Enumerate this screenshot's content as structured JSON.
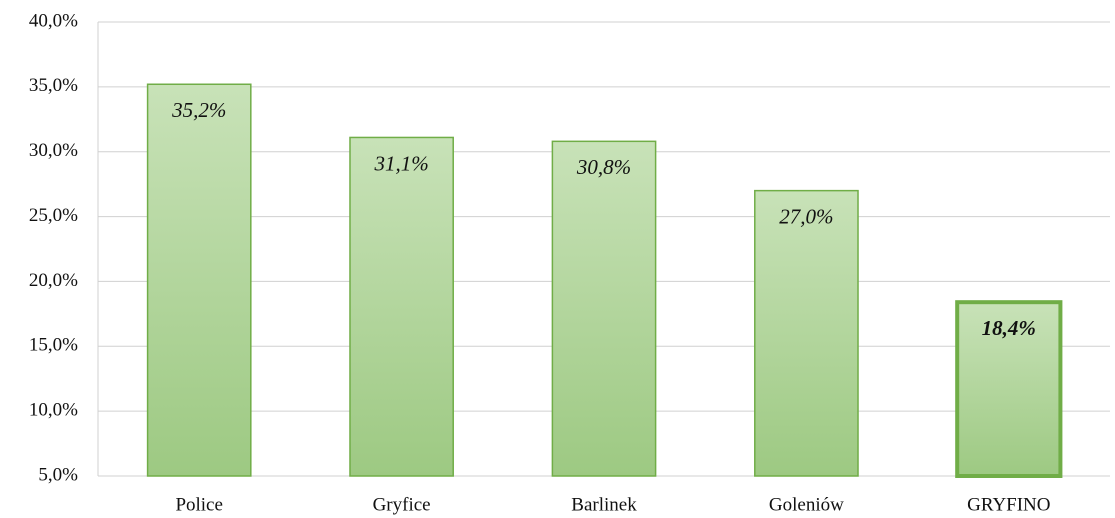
{
  "chart_data": {
    "type": "bar",
    "categories": [
      "Police",
      "Gryfice",
      "Barlinek",
      "Goleniów",
      "GRYFINO"
    ],
    "values": [
      35.2,
      31.1,
      30.8,
      27.0,
      18.4
    ],
    "value_labels": [
      "35,2%",
      "31,1%",
      "30,8%",
      "27,0%",
      "18,4%"
    ],
    "color": "#a9d18e",
    "highlight": "GRYFINO",
    "ylim": [
      5,
      40
    ],
    "yticks": [
      {
        "value": 5,
        "label": "5,0%"
      },
      {
        "value": 10,
        "label": "10,0%"
      },
      {
        "value": 15,
        "label": "15,0%"
      },
      {
        "value": 20,
        "label": "20,0%"
      },
      {
        "value": 25,
        "label": "25,0%"
      },
      {
        "value": 30,
        "label": "30,0%"
      },
      {
        "value": 35,
        "label": "35,0%"
      },
      {
        "value": 40,
        "label": "40,0%"
      }
    ],
    "grid": true
  }
}
